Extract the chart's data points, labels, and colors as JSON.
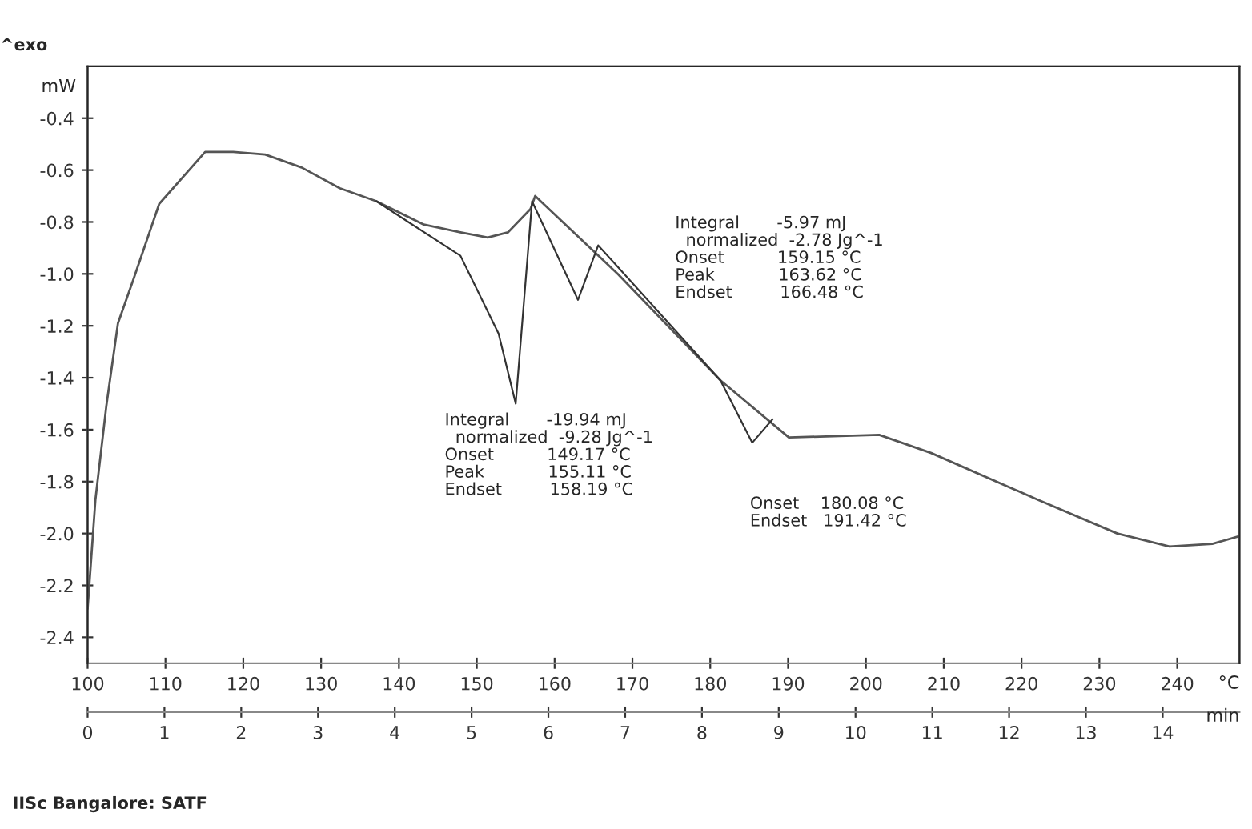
{
  "chart_data": {
    "type": "line",
    "xlabel": "°C",
    "ylabel": "mW",
    "x2label": "min",
    "xlim": [
      100,
      248
    ],
    "xticks": [
      100,
      110,
      120,
      130,
      140,
      150,
      160,
      170,
      180,
      190,
      200,
      210,
      220,
      230,
      240
    ],
    "x2lim": [
      0,
      15
    ],
    "x2ticks": [
      0,
      1,
      2,
      3,
      4,
      5,
      6,
      7,
      8,
      9,
      10,
      11,
      12,
      13,
      14
    ],
    "ylim": [
      -2.5,
      -0.2
    ],
    "yticks": [
      -2.4,
      -2.2,
      {
        "value": -2.0,
        "label": "-2.0"
      },
      -1.8,
      -1.6,
      -1.4,
      -1.2,
      {
        "value": -1.0,
        "label": "-1.0"
      },
      -0.8,
      -0.6,
      -0.4
    ],
    "grid": false,
    "legend": false,
    "marker": "none",
    "line_style": "solid",
    "series": [
      {
        "color": "#555555",
        "x": [
          100,
          101.0,
          102.4,
          103.9,
          105.9,
          109.2,
          115.1,
          118.7,
          122.8,
          127.5,
          132.4,
          137.1,
          143.2,
          147.9,
          151.4,
          154.0,
          156.9,
          157.5,
          168.1,
          181.3,
          190.1,
          201.7,
          208.4,
          222.1,
          232.3,
          239.0,
          244.5,
          248.0
        ],
        "values": [
          -2.29,
          -1.87,
          -1.51,
          -1.19,
          -1.02,
          -0.73,
          -0.53,
          -0.53,
          -0.54,
          -0.59,
          -0.67,
          -0.72,
          -0.81,
          -0.84,
          -0.86,
          -0.84,
          -0.75,
          -0.7,
          -1.0,
          -1.41,
          -1.63,
          -1.62,
          -1.69,
          -1.87,
          -2.0,
          -2.05,
          -2.04,
          -2.01
        ]
      },
      {
        "color": "#333333",
        "x": [
          137.1,
          147.9,
          152.8,
          155.0,
          157.1,
          163.0,
          165.6,
          181.3,
          185.4,
          188.0
        ],
        "values": [
          -0.72,
          -0.93,
          -1.23,
          -1.5,
          -0.72,
          -1.1,
          -0.89,
          -1.41,
          -1.65,
          -1.56
        ]
      }
    ],
    "annotations": [
      "^exo",
      "Integral       -5.97 mJ\n  normalized  -2.78 Jg^-1\nOnset          159.15 °C\nPeak            163.62 °C\nEndset         166.48 °C",
      "Integral       -19.94 mJ\n  normalized  -9.28 Jg^-1\nOnset          149.17 °C\nPeak            155.11 °C\nEndset         158.19 °C",
      "Onset    180.08 °C\nEndset   191.42 °C",
      "IISc Bangalore: SATF"
    ]
  }
}
